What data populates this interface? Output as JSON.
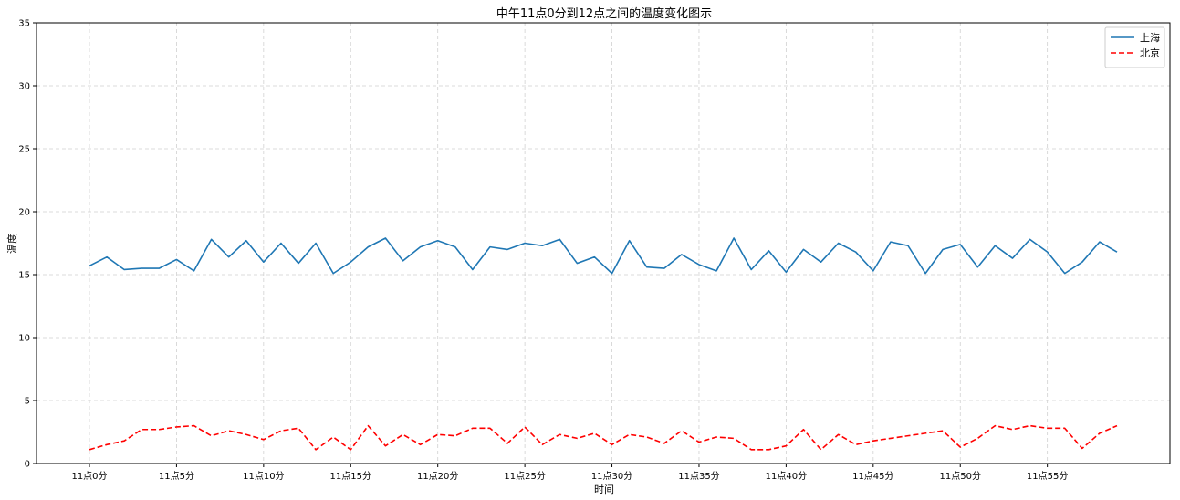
{
  "chart_data": {
    "type": "line",
    "title": "中午11点0分到12点之间的温度变化图示",
    "xlabel": "时间",
    "ylabel": "温度",
    "x_tick_labels": [
      "11点0分",
      "11点5分",
      "11点10分",
      "11点15分",
      "11点20分",
      "11点25分",
      "11点30分",
      "11点35分",
      "11点40分",
      "11点45分",
      "11点50分",
      "11点55分"
    ],
    "x_tick_step": 5,
    "x_range": [
      0,
      59
    ],
    "y_ticks": [
      0,
      5,
      10,
      15,
      20,
      25,
      30,
      35
    ],
    "ylim": [
      0,
      35
    ],
    "grid": true,
    "grid_style": "dashed",
    "legend_position": "top-right",
    "series": [
      {
        "name": "上海",
        "color": "#1f77b4",
        "dash": "solid",
        "values": [
          15.7,
          16.4,
          15.4,
          15.5,
          15.5,
          16.2,
          15.3,
          17.8,
          16.4,
          17.7,
          16.0,
          17.5,
          15.9,
          17.5,
          15.1,
          16.0,
          17.2,
          17.9,
          16.1,
          17.2,
          17.7,
          17.2,
          15.4,
          17.2,
          17.0,
          17.5,
          17.3,
          17.8,
          15.9,
          16.4,
          15.1,
          17.7,
          15.6,
          15.5,
          16.6,
          15.8,
          15.3,
          17.9,
          15.4,
          16.9,
          15.2,
          17.0,
          16.0,
          17.5,
          16.8,
          15.3,
          17.6,
          17.3,
          15.1,
          17.0,
          17.4,
          15.6,
          17.3,
          16.3,
          17.8,
          16.8,
          15.1,
          16.0,
          17.6,
          16.8
        ]
      },
      {
        "name": "北京",
        "color": "#ff0000",
        "dash": "dashed",
        "values": [
          1.1,
          1.5,
          1.8,
          2.7,
          2.7,
          2.9,
          3.0,
          2.2,
          2.6,
          2.3,
          1.9,
          2.6,
          2.8,
          1.1,
          2.1,
          1.1,
          3.0,
          1.4,
          2.3,
          1.5,
          2.3,
          2.2,
          2.8,
          2.8,
          1.6,
          2.9,
          1.5,
          2.3,
          2.0,
          2.4,
          1.5,
          2.3,
          2.1,
          1.6,
          2.6,
          1.7,
          2.1,
          2.0,
          1.1,
          1.1,
          1.4,
          2.7,
          1.1,
          2.3,
          1.5,
          1.8,
          2.0,
          2.2,
          2.4,
          2.6,
          1.3,
          2.0,
          3.0,
          2.7,
          3.0,
          2.8,
          2.8,
          1.2,
          2.4,
          3.0
        ]
      }
    ]
  }
}
